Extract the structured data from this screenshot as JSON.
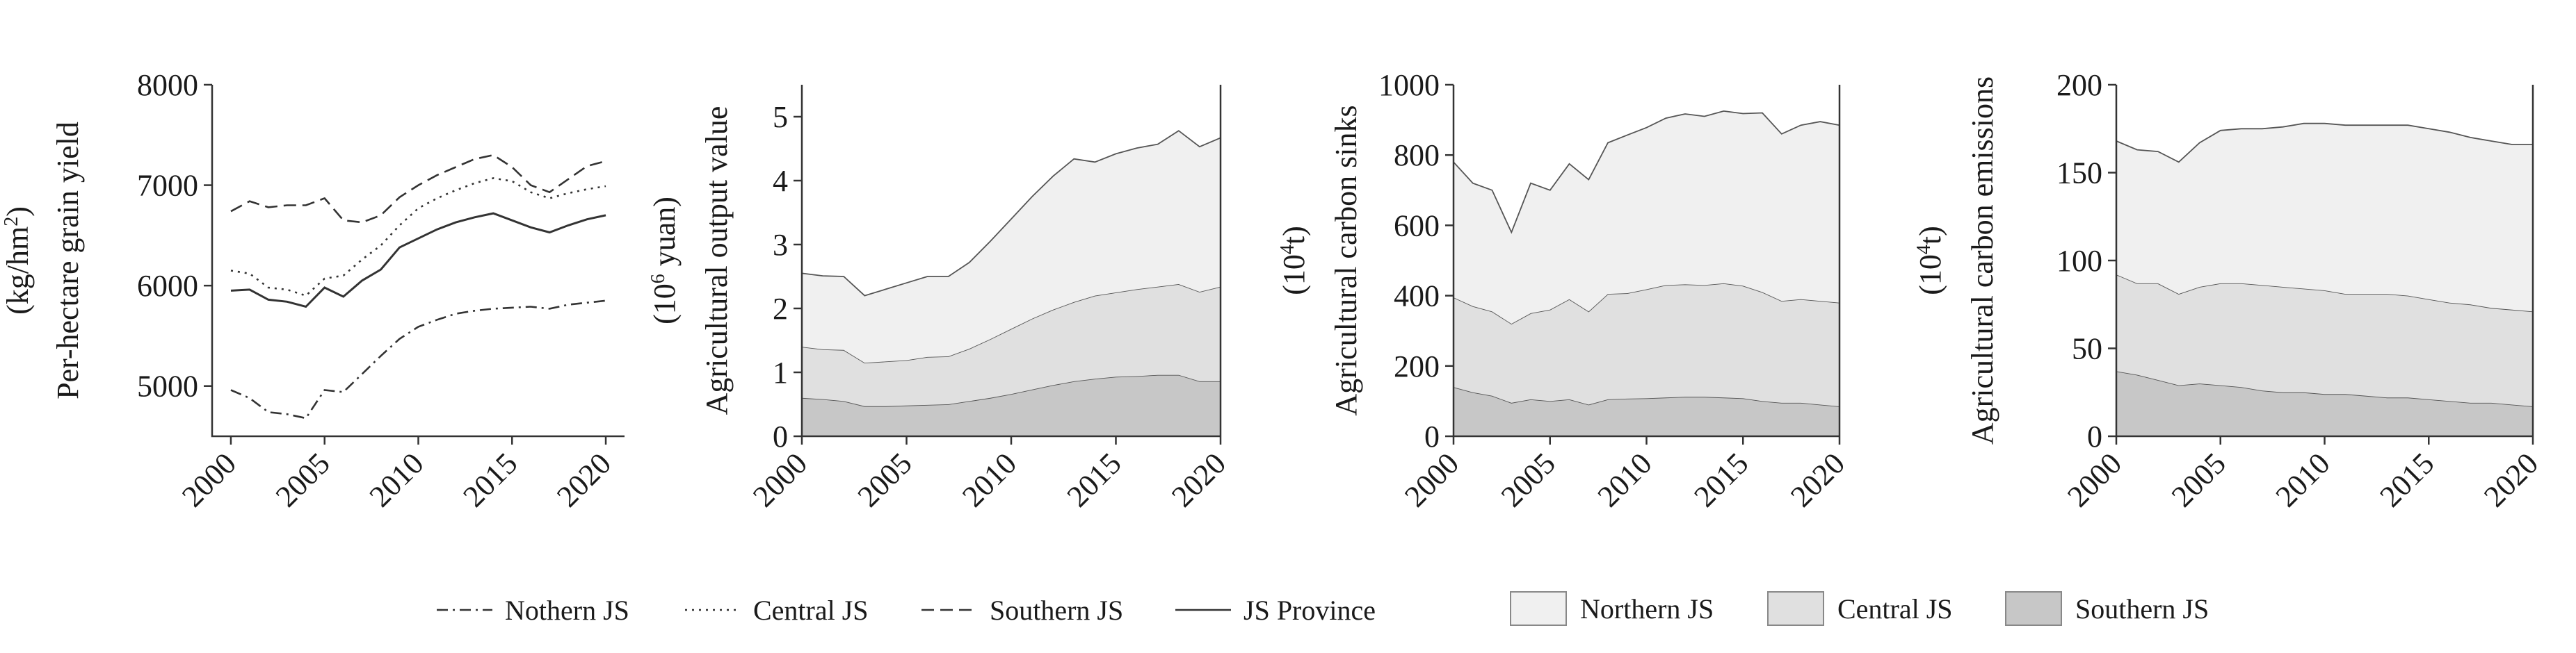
{
  "years_label_note": "",
  "chart_data": [
    {
      "type": "line",
      "ylabel": "Per-hectare grain yield",
      "yunit": "(kg/hm",
      "yunit_sup": "2",
      "yunit_close": ")",
      "ylim": [
        4500,
        8000
      ],
      "yticks": [
        5000,
        6000,
        7000,
        8000
      ],
      "xlim": [
        1999,
        2021
      ],
      "xticks": [
        2000,
        2005,
        2010,
        2015,
        2020
      ],
      "x": [
        2000,
        2001,
        2002,
        2003,
        2004,
        2005,
        2006,
        2007,
        2008,
        2009,
        2010,
        2011,
        2012,
        2013,
        2014,
        2015,
        2016,
        2017,
        2018,
        2019,
        2020
      ],
      "series": [
        {
          "name": "Nothern JS",
          "dash": "dashdot",
          "values": [
            4960,
            4880,
            4740,
            4720,
            4680,
            4960,
            4940,
            5120,
            5300,
            5470,
            5590,
            5660,
            5720,
            5750,
            5770,
            5780,
            5790,
            5770,
            5810,
            5830,
            5850
          ]
        },
        {
          "name": "Central JS",
          "dash": "dotted",
          "values": [
            6150,
            6120,
            5980,
            5960,
            5900,
            6070,
            6100,
            6260,
            6400,
            6600,
            6770,
            6870,
            6950,
            7020,
            7070,
            7040,
            6930,
            6870,
            6920,
            6960,
            6990
          ]
        },
        {
          "name": "Southern JS",
          "dash": "dashed",
          "values": [
            6740,
            6840,
            6780,
            6800,
            6800,
            6870,
            6650,
            6630,
            6700,
            6880,
            7000,
            7100,
            7180,
            7260,
            7300,
            7180,
            7000,
            6930,
            7060,
            7190,
            7240
          ]
        },
        {
          "name": "JS Province",
          "dash": "solid",
          "values": [
            5950,
            5960,
            5860,
            5840,
            5790,
            5980,
            5890,
            6050,
            6160,
            6380,
            6470,
            6560,
            6630,
            6680,
            6720,
            6650,
            6580,
            6530,
            6600,
            6660,
            6700
          ]
        }
      ]
    },
    {
      "type": "area",
      "ylabel": "Agricultural output value",
      "yunit": "(10",
      "yunit_sup": "6",
      "yunit_close": " yuan)",
      "ylim": [
        0,
        5.5
      ],
      "yticks": [
        0,
        1,
        2,
        3,
        4,
        5
      ],
      "xlim": [
        2000,
        2020
      ],
      "xticks": [
        2000,
        2005,
        2010,
        2015,
        2020
      ],
      "x": [
        2000,
        2001,
        2002,
        2003,
        2004,
        2005,
        2006,
        2007,
        2008,
        2009,
        2010,
        2011,
        2012,
        2013,
        2014,
        2015,
        2016,
        2017,
        2018,
        2019,
        2020
      ],
      "stacked": true,
      "series": [
        {
          "name": "Southern JS",
          "values": [
            0.6,
            0.58,
            0.55,
            0.47,
            0.47,
            0.48,
            0.49,
            0.5,
            0.55,
            0.6,
            0.66,
            0.73,
            0.8,
            0.86,
            0.9,
            0.93,
            0.94,
            0.96,
            0.96,
            0.86,
            0.86
          ]
        },
        {
          "name": "Central JS",
          "values": [
            0.8,
            0.78,
            0.8,
            0.68,
            0.7,
            0.71,
            0.75,
            0.75,
            0.82,
            0.92,
            1.02,
            1.11,
            1.18,
            1.24,
            1.3,
            1.32,
            1.36,
            1.38,
            1.42,
            1.4,
            1.48
          ]
        },
        {
          "name": "Northern JS",
          "values": [
            1.15,
            1.15,
            1.15,
            1.05,
            1.13,
            1.21,
            1.26,
            1.25,
            1.35,
            1.53,
            1.72,
            1.91,
            2.09,
            2.24,
            2.09,
            2.17,
            2.21,
            2.23,
            2.4,
            2.27,
            2.33
          ]
        }
      ]
    },
    {
      "type": "area",
      "ylabel": "Agricultural carbon sinks",
      "yunit": "(10",
      "yunit_sup": "4",
      "yunit_close": "t)",
      "ylim": [
        0,
        1000
      ],
      "yticks": [
        0,
        200,
        400,
        600,
        800,
        1000
      ],
      "xlim": [
        2000,
        2020
      ],
      "xticks": [
        2000,
        2005,
        2010,
        2015,
        2020
      ],
      "x": [
        2000,
        2001,
        2002,
        2003,
        2004,
        2005,
        2006,
        2007,
        2008,
        2009,
        2010,
        2011,
        2012,
        2013,
        2014,
        2015,
        2016,
        2017,
        2018,
        2019,
        2020
      ],
      "stacked": true,
      "series": [
        {
          "name": "Southern JS",
          "values": [
            140,
            125,
            115,
            95,
            105,
            100,
            105,
            90,
            105,
            107,
            108,
            110,
            112,
            112,
            110,
            108,
            100,
            95,
            95,
            90,
            85
          ]
        },
        {
          "name": "Central JS",
          "values": [
            255,
            245,
            240,
            225,
            245,
            260,
            285,
            265,
            300,
            300,
            310,
            320,
            320,
            318,
            325,
            320,
            310,
            290,
            295,
            295,
            295
          ]
        },
        {
          "name": "Northern JS",
          "values": [
            385,
            350,
            345,
            260,
            370,
            340,
            385,
            375,
            430,
            450,
            460,
            475,
            485,
            480,
            490,
            490,
            510,
            475,
            495,
            510,
            505
          ]
        }
      ]
    },
    {
      "type": "area",
      "ylabel": "Agricultural carbon emissions",
      "yunit": "(10",
      "yunit_sup": "4",
      "yunit_close": "t)",
      "ylim": [
        0,
        200
      ],
      "yticks": [
        0,
        50,
        100,
        150,
        200
      ],
      "xlim": [
        2000,
        2020
      ],
      "xticks": [
        2000,
        2005,
        2010,
        2015,
        2020
      ],
      "x": [
        2000,
        2001,
        2002,
        2003,
        2004,
        2005,
        2006,
        2007,
        2008,
        2009,
        2010,
        2011,
        2012,
        2013,
        2014,
        2015,
        2016,
        2017,
        2018,
        2019,
        2020
      ],
      "stacked": true,
      "series": [
        {
          "name": "Southern JS",
          "values": [
            37,
            35,
            32,
            29,
            30,
            29,
            28,
            26,
            25,
            25,
            24,
            24,
            23,
            22,
            22,
            21,
            20,
            19,
            19,
            18,
            17
          ]
        },
        {
          "name": "Central JS",
          "values": [
            55,
            52,
            55,
            52,
            55,
            58,
            59,
            60,
            60,
            59,
            59,
            57,
            58,
            59,
            58,
            57,
            56,
            56,
            54,
            54,
            54
          ]
        },
        {
          "name": "Northern JS",
          "values": [
            76,
            76,
            75,
            75,
            82,
            87,
            88,
            89,
            91,
            94,
            95,
            96,
            96,
            96,
            97,
            97,
            97,
            95,
            95,
            94,
            95
          ]
        }
      ]
    }
  ],
  "legend_lines": [
    {
      "label": "Nothern JS",
      "dash": "dashdot"
    },
    {
      "label": "Central JS",
      "dash": "dotted"
    },
    {
      "label": "Southern JS",
      "dash": "dashed"
    },
    {
      "label": "JS Province",
      "dash": "solid"
    }
  ],
  "legend_areas": [
    {
      "label": "Northern JS",
      "color": "#f0f0f0"
    },
    {
      "label": "Central JS",
      "color": "#e0e0e0"
    },
    {
      "label": "Southern JS",
      "color": "#c7c7c7"
    }
  ],
  "colors": {
    "northern": "#f0f0f0",
    "central": "#e0e0e0",
    "southern": "#c7c7c7",
    "line": "#333333"
  }
}
